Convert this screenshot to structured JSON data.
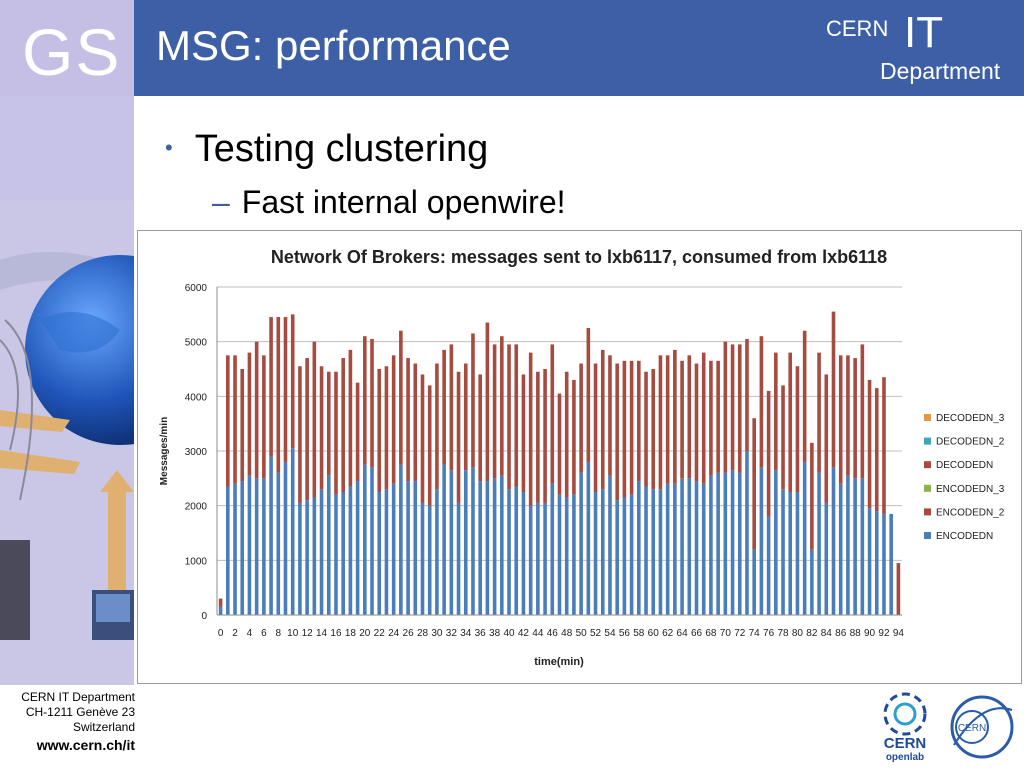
{
  "branding": {
    "gs_logo": "GS",
    "cern_it_logo": {
      "cern": "CERN",
      "it": "IT",
      "department": "Department"
    },
    "openlab_logo": {
      "cern": "CERN",
      "openlab": "openlab"
    },
    "cern_seal": "CERN"
  },
  "slide": {
    "title": "MSG: performance",
    "bullets": [
      {
        "text": "Testing clustering",
        "level": 1
      },
      {
        "text": "Fast internal openwire!",
        "level": 2
      }
    ]
  },
  "footer": {
    "line1": "CERN IT Department",
    "line2": "CH-1211 Genève 23",
    "line3": "Switzerland",
    "url": "www.cern.ch/it"
  },
  "colors": {
    "header_blue": "#3d5fa6",
    "encodedn": "#4a7ebb",
    "encodedn_2": "#a64b3f",
    "encodedn_3": "#8cb24a",
    "decodedn": "#a64b3f",
    "decodedn_2": "#3fa6b4",
    "decodedn_3": "#e3974a"
  },
  "chart_data": {
    "type": "bar",
    "stacked": true,
    "title": "Network Of Brokers: messages sent to lxb6117, consumed from lxb6118",
    "xlabel": "time(min)",
    "ylabel": "Messages/min",
    "ylim": [
      0,
      6000
    ],
    "yticks": [
      0,
      1000,
      2000,
      3000,
      4000,
      5000,
      6000
    ],
    "grid": true,
    "legend_position": "right",
    "x": [
      0,
      1,
      2,
      3,
      4,
      5,
      6,
      7,
      8,
      9,
      10,
      11,
      12,
      13,
      14,
      15,
      16,
      17,
      18,
      19,
      20,
      21,
      22,
      23,
      24,
      25,
      26,
      27,
      28,
      29,
      30,
      31,
      32,
      33,
      34,
      35,
      36,
      37,
      38,
      39,
      40,
      41,
      42,
      43,
      44,
      45,
      46,
      47,
      48,
      49,
      50,
      51,
      52,
      53,
      54,
      55,
      56,
      57,
      58,
      59,
      60,
      61,
      62,
      63,
      64,
      65,
      66,
      67,
      68,
      69,
      70,
      71,
      72,
      73,
      74,
      75,
      76,
      77,
      78,
      79,
      80,
      81,
      82,
      83,
      84,
      85,
      86,
      87,
      88,
      89,
      90,
      91,
      92,
      93,
      94
    ],
    "xtick_labels": [
      "0",
      "2",
      "4",
      "6",
      "8",
      "10",
      "12",
      "14",
      "16",
      "18",
      "20",
      "22",
      "24",
      "26",
      "28",
      "30",
      "32",
      "34",
      "36",
      "38",
      "40",
      "42",
      "44",
      "46",
      "48",
      "50",
      "52",
      "54",
      "56",
      "58",
      "60",
      "62",
      "64",
      "66",
      "68",
      "70",
      "72",
      "74",
      "76",
      "78",
      "80",
      "82",
      "84",
      "86",
      "88",
      "90",
      "92",
      "94"
    ],
    "legend_order": [
      "DECODEDN_3",
      "DECODEDN_2",
      "DECODEDN",
      "ENCODEDN_3",
      "ENCODEDN_2",
      "ENCODEDN"
    ],
    "series": [
      {
        "name": "ENCODEDN",
        "color": "#4a7ebb",
        "values": [
          150,
          2350,
          2400,
          2450,
          2550,
          2500,
          2500,
          2900,
          2600,
          2800,
          3050,
          2050,
          2100,
          2150,
          2300,
          2550,
          2200,
          2250,
          2350,
          2450,
          2750,
          2700,
          2250,
          2300,
          2400,
          2750,
          2450,
          2450,
          2050,
          2000,
          2300,
          2750,
          2650,
          2050,
          2650,
          2700,
          2450,
          2450,
          2500,
          2550,
          2300,
          2350,
          2250,
          2000,
          2050,
          2050,
          2400,
          2200,
          2150,
          2200,
          2600,
          2800,
          2250,
          2300,
          2550,
          2100,
          2150,
          2200,
          2450,
          2350,
          2300,
          2300,
          2400,
          2400,
          2500,
          2500,
          2450,
          2400,
          2550,
          2600,
          2600,
          2650,
          2600,
          3000,
          1200,
          2700,
          1800,
          2650,
          2300,
          2250,
          2250,
          2800,
          1200,
          2600,
          2050,
          2700,
          2400,
          2550,
          2500,
          2500,
          1950,
          1900,
          1850,
          1850,
          0
        ]
      },
      {
        "name": "ENCODEDN_2",
        "color": "#a64b3f",
        "values": [
          0,
          0,
          0,
          0,
          0,
          0,
          0,
          0,
          0,
          0,
          0,
          0,
          0,
          0,
          0,
          0,
          0,
          0,
          0,
          0,
          0,
          0,
          0,
          0,
          0,
          0,
          0,
          0,
          0,
          0,
          0,
          0,
          0,
          0,
          0,
          0,
          0,
          0,
          0,
          0,
          0,
          0,
          0,
          0,
          0,
          0,
          0,
          0,
          0,
          0,
          0,
          0,
          0,
          0,
          0,
          0,
          0,
          0,
          0,
          0,
          0,
          0,
          0,
          0,
          0,
          0,
          0,
          0,
          0,
          0,
          0,
          0,
          0,
          0,
          0,
          0,
          0,
          0,
          0,
          0,
          0,
          0,
          0,
          0,
          0,
          0,
          0,
          0,
          0,
          0,
          0,
          0,
          0,
          0,
          0
        ]
      },
      {
        "name": "ENCODEDN_3",
        "color": "#8cb24a",
        "values": [
          0,
          0,
          0,
          0,
          0,
          0,
          0,
          0,
          0,
          0,
          0,
          0,
          0,
          0,
          0,
          0,
          0,
          0,
          0,
          0,
          0,
          0,
          0,
          0,
          0,
          0,
          0,
          0,
          0,
          0,
          0,
          0,
          0,
          0,
          0,
          0,
          0,
          0,
          0,
          0,
          0,
          0,
          0,
          0,
          0,
          0,
          0,
          0,
          0,
          0,
          0,
          0,
          0,
          0,
          0,
          0,
          0,
          0,
          0,
          0,
          0,
          0,
          0,
          0,
          0,
          0,
          0,
          0,
          0,
          0,
          0,
          0,
          0,
          0,
          0,
          0,
          0,
          0,
          0,
          0,
          0,
          0,
          0,
          0,
          0,
          0,
          0,
          0,
          0,
          0,
          0,
          0,
          0,
          0,
          0
        ]
      },
      {
        "name": "DECODEDN",
        "color": "#a64b3f",
        "values": [
          150,
          2400,
          2350,
          2050,
          2250,
          2500,
          2250,
          2550,
          2850,
          2650,
          2450,
          2500,
          2600,
          2850,
          2250,
          1900,
          2250,
          2450,
          2500,
          1800,
          2350,
          2350,
          2250,
          2250,
          2350,
          2450,
          2250,
          2150,
          2350,
          2200,
          2300,
          2100,
          2300,
          2400,
          1950,
          2450,
          1950,
          2900,
          2450,
          2550,
          2650,
          2600,
          2150,
          2800,
          2400,
          2450,
          2550,
          1850,
          2300,
          2100,
          2000,
          2450,
          2350,
          2550,
          2200,
          2500,
          2500,
          2450,
          2200,
          2100,
          2200,
          2450,
          2350,
          2450,
          2150,
          2250,
          2150,
          2400,
          2100,
          2050,
          2400,
          2300,
          2350,
          2050,
          2400,
          2400,
          2300,
          2150,
          1900,
          2550,
          2300,
          2400,
          1950,
          2200,
          2350,
          2850,
          2350,
          2200,
          2200,
          2450,
          2350,
          2250,
          2500,
          0,
          950
        ]
      },
      {
        "name": "DECODEDN_2",
        "color": "#3fa6b4",
        "values": [
          0,
          0,
          0,
          0,
          0,
          0,
          0,
          0,
          0,
          0,
          0,
          0,
          0,
          0,
          0,
          0,
          0,
          0,
          0,
          0,
          0,
          0,
          0,
          0,
          0,
          0,
          0,
          0,
          0,
          0,
          0,
          0,
          0,
          0,
          0,
          0,
          0,
          0,
          0,
          0,
          0,
          0,
          0,
          0,
          0,
          0,
          0,
          0,
          0,
          0,
          0,
          0,
          0,
          0,
          0,
          0,
          0,
          0,
          0,
          0,
          0,
          0,
          0,
          0,
          0,
          0,
          0,
          0,
          0,
          0,
          0,
          0,
          0,
          0,
          0,
          0,
          0,
          0,
          0,
          0,
          0,
          0,
          0,
          0,
          0,
          0,
          0,
          0,
          0,
          0,
          0,
          0,
          0,
          0,
          0
        ]
      },
      {
        "name": "DECODEDN_3",
        "color": "#e3974a",
        "values": [
          0,
          0,
          0,
          0,
          0,
          0,
          0,
          0,
          0,
          0,
          0,
          0,
          0,
          0,
          0,
          0,
          0,
          0,
          0,
          0,
          0,
          0,
          0,
          0,
          0,
          0,
          0,
          0,
          0,
          0,
          0,
          0,
          0,
          0,
          0,
          0,
          0,
          0,
          0,
          0,
          0,
          0,
          0,
          0,
          0,
          0,
          0,
          0,
          0,
          0,
          0,
          0,
          0,
          0,
          0,
          0,
          0,
          0,
          0,
          0,
          0,
          0,
          0,
          0,
          0,
          0,
          0,
          0,
          0,
          0,
          0,
          0,
          0,
          0,
          0,
          0,
          0,
          0,
          0,
          0,
          0,
          0,
          0,
          0,
          0,
          0,
          0,
          0,
          0,
          0,
          0,
          0,
          0,
          0,
          0
        ]
      }
    ]
  }
}
